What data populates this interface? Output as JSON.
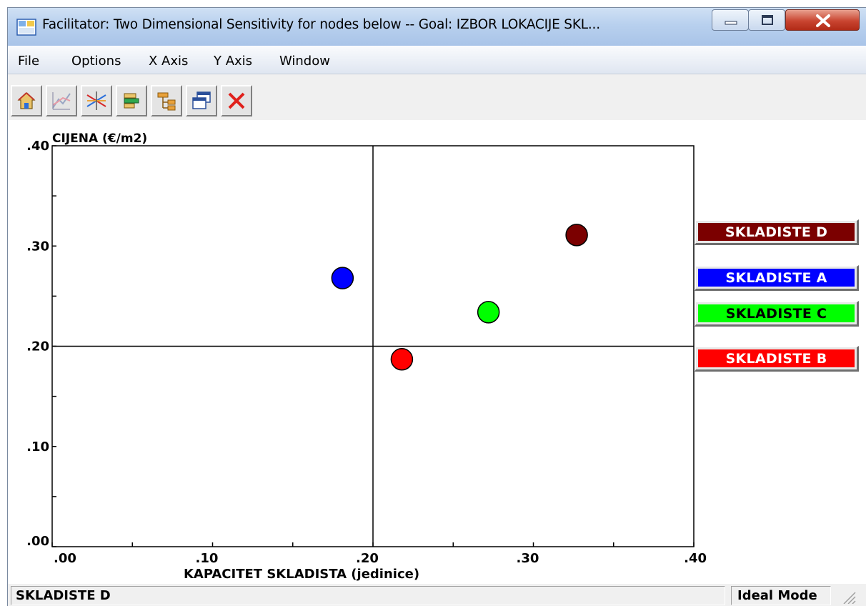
{
  "window": {
    "title": "Facilitator: Two Dimensional  Sensitivity for nodes below -- Goal: IZBOR LOKACIJE SKL...",
    "icons": {
      "app": "app-icon",
      "minimize": "minimize-icon",
      "maximize": "maximize-icon",
      "close": "close-icon"
    }
  },
  "menu": {
    "items": [
      "File",
      "Options",
      "X Axis",
      "Y Axis",
      "Window"
    ]
  },
  "toolbar": {
    "buttons": [
      "home-icon",
      "line-chart-icon",
      "crossed-lines-icon",
      "stacked-bars-icon",
      "tree-icon",
      "windows-icon",
      "close-red-x-icon"
    ]
  },
  "chart_data": {
    "type": "scatter",
    "title": "",
    "xlabel": "KAPACITET SKLADISTA (jedinice)",
    "ylabel": "CIJENA (€/m2)",
    "xlim": [
      0,
      0.4
    ],
    "ylim": [
      0,
      0.4
    ],
    "x_ticks": [
      ".00",
      ".10",
      ".20",
      ".30",
      ".40"
    ],
    "y_ticks": [
      ".00",
      ".10",
      ".20",
      ".30",
      ".40"
    ],
    "x_tick_values": [
      0,
      0.1,
      0.2,
      0.3,
      0.4
    ],
    "y_tick_values": [
      0,
      0.1,
      0.2,
      0.3,
      0.4
    ],
    "x_minor_step": 0.05,
    "y_minor_step": 0.05,
    "reference_lines": {
      "x": 0.2,
      "y": 0.2
    },
    "grid": false,
    "legend_placement": "right",
    "points": [
      {
        "name": "SKLADISTE D",
        "x": 0.327,
        "y": 0.311,
        "color": "#7b0000"
      },
      {
        "name": "SKLADISTE A",
        "x": 0.181,
        "y": 0.268,
        "color": "#0000ff"
      },
      {
        "name": "SKLADISTE C",
        "x": 0.272,
        "y": 0.234,
        "color": "#00ff00"
      },
      {
        "name": "SKLADISTE B",
        "x": 0.218,
        "y": 0.187,
        "color": "#ff0000"
      }
    ]
  },
  "legend": [
    {
      "label": "SKLADISTE D",
      "color": "#7b0000"
    },
    {
      "label": "SKLADISTE A",
      "color": "#0000ff"
    },
    {
      "label": "SKLADISTE C",
      "color": "#00ff00"
    },
    {
      "label": "SKLADISTE B",
      "color": "#ff0000"
    }
  ],
  "status": {
    "left": "SKLADISTE D",
    "right": "Ideal Mode"
  }
}
